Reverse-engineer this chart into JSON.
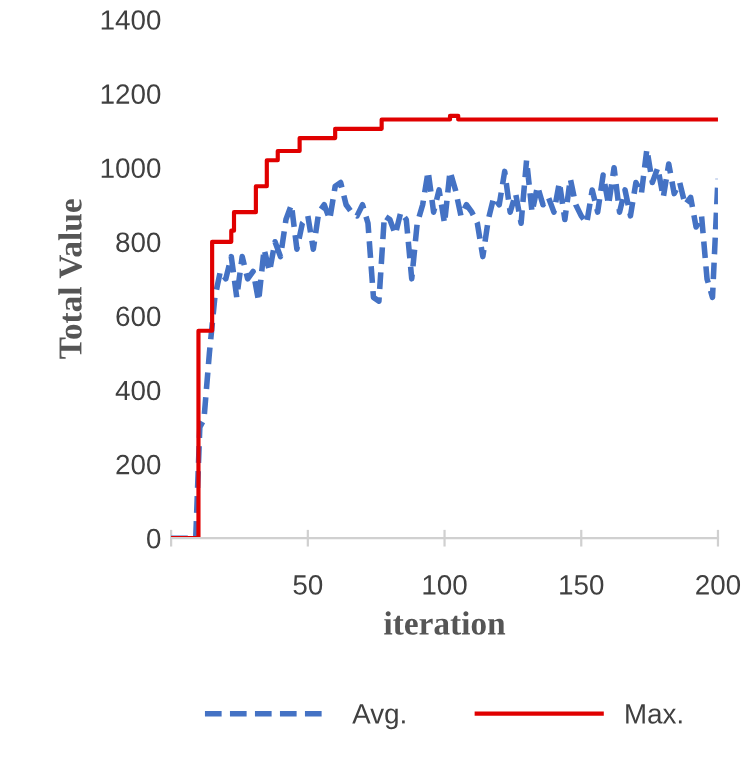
{
  "chart_data": {
    "type": "line",
    "xlabel": "iteration",
    "ylabel": "Total Value",
    "xlim": [
      0,
      200
    ],
    "xticks": [
      {
        "value": 0,
        "label": null
      },
      50,
      100,
      150,
      200
    ],
    "ylim": [
      0,
      1400
    ],
    "yticks": [
      0,
      200,
      400,
      600,
      800,
      1000,
      1200,
      1400
    ],
    "grid": false,
    "legend": "bottom",
    "series": [
      {
        "name": "Avg.",
        "color": "#4472c4",
        "line_style": "dashed",
        "x": [
          0,
          9,
          10.5,
          12,
          14,
          16,
          18,
          20,
          22,
          24,
          26,
          28,
          30,
          32,
          34,
          36,
          38,
          40,
          42,
          44,
          46,
          48,
          50,
          52,
          54,
          56,
          58,
          60,
          62,
          64,
          66,
          68,
          70,
          72,
          74,
          76,
          78,
          80,
          82,
          84,
          86,
          88,
          90,
          92,
          94,
          96,
          98,
          100,
          102,
          104,
          106,
          108,
          110,
          112,
          114,
          116,
          118,
          120,
          122,
          124,
          126,
          128,
          130,
          132,
          134,
          136,
          138,
          140,
          142,
          144,
          146,
          148,
          150,
          152,
          154,
          156,
          158,
          160,
          162,
          164,
          166,
          168,
          170,
          172,
          174,
          176,
          178,
          180,
          182,
          184,
          186,
          188,
          190,
          192,
          194,
          196,
          198,
          200
        ],
        "values": [
          0,
          0,
          300,
          320,
          500,
          650,
          720,
          700,
          760,
          650,
          760,
          700,
          720,
          640,
          780,
          720,
          800,
          760,
          860,
          900,
          780,
          850,
          870,
          780,
          880,
          900,
          860,
          950,
          960,
          900,
          880,
          870,
          900,
          850,
          650,
          640,
          870,
          860,
          820,
          880,
          860,
          700,
          850,
          900,
          990,
          880,
          940,
          850,
          990,
          940,
          870,
          900,
          880,
          850,
          760,
          860,
          920,
          900,
          990,
          880,
          930,
          850,
          1020,
          880,
          950,
          900,
          920,
          880,
          960,
          860,
          970,
          900,
          870,
          850,
          940,
          880,
          980,
          900,
          1000,
          880,
          940,
          870,
          960,
          930,
          1050,
          960,
          1000,
          920,
          1010,
          930,
          960,
          900,
          920,
          840,
          870,
          700,
          650,
          970
        ]
      },
      {
        "name": "Max.",
        "color": "#e00000",
        "type": "step",
        "line_style": "solid",
        "x": [
          0,
          10,
          15,
          22,
          23,
          31,
          35,
          39,
          47,
          60,
          77,
          102,
          105,
          200
        ],
        "values": [
          0,
          560,
          800,
          830,
          880,
          950,
          1020,
          1045,
          1080,
          1105,
          1130,
          1140,
          1130,
          1130
        ]
      }
    ]
  }
}
